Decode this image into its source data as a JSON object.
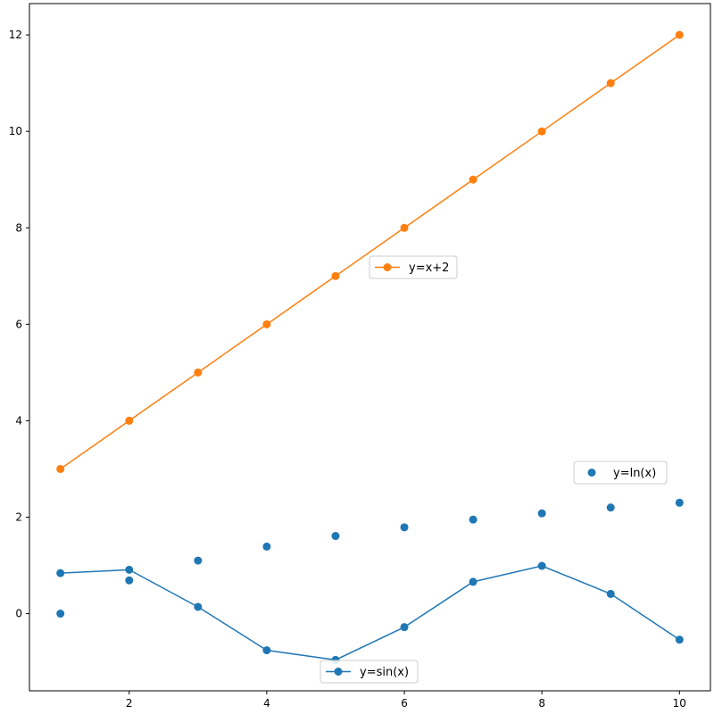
{
  "chart_data": {
    "type": "line",
    "title": "",
    "xlabel": "",
    "ylabel": "",
    "xlim": [
      0.55,
      10.45
    ],
    "ylim": [
      -1.6,
      12.65
    ],
    "xticks": [
      2,
      4,
      6,
      8,
      10
    ],
    "yticks": [
      0,
      2,
      4,
      6,
      8,
      10,
      12
    ],
    "grid": false,
    "series": [
      {
        "name": "y=x+2",
        "style": "line-marker",
        "color": "#ff7f0e",
        "x": [
          1,
          2,
          3,
          4,
          5,
          6,
          7,
          8,
          9,
          10
        ],
        "y": [
          3,
          4,
          5,
          6,
          7,
          8,
          9,
          10,
          11,
          12
        ],
        "legend_location": "center"
      },
      {
        "name": "y=ln(x)",
        "style": "scatter",
        "color": "#1f77b4",
        "x": [
          1,
          2,
          3,
          4,
          5,
          6,
          7,
          8,
          9,
          10
        ],
        "y": [
          0,
          0.69,
          1.1,
          1.39,
          1.61,
          1.79,
          1.95,
          2.08,
          2.2,
          2.3
        ],
        "legend_location": "right"
      },
      {
        "name": "y=sin(x)",
        "style": "line-marker",
        "color": "#1f77b4",
        "x": [
          1,
          2,
          3,
          4,
          5,
          6,
          7,
          8,
          9,
          10
        ],
        "y": [
          0.84,
          0.91,
          0.14,
          -0.76,
          -0.96,
          -0.28,
          0.66,
          0.99,
          0.41,
          -0.54
        ],
        "legend_location": "lower center"
      }
    ]
  }
}
